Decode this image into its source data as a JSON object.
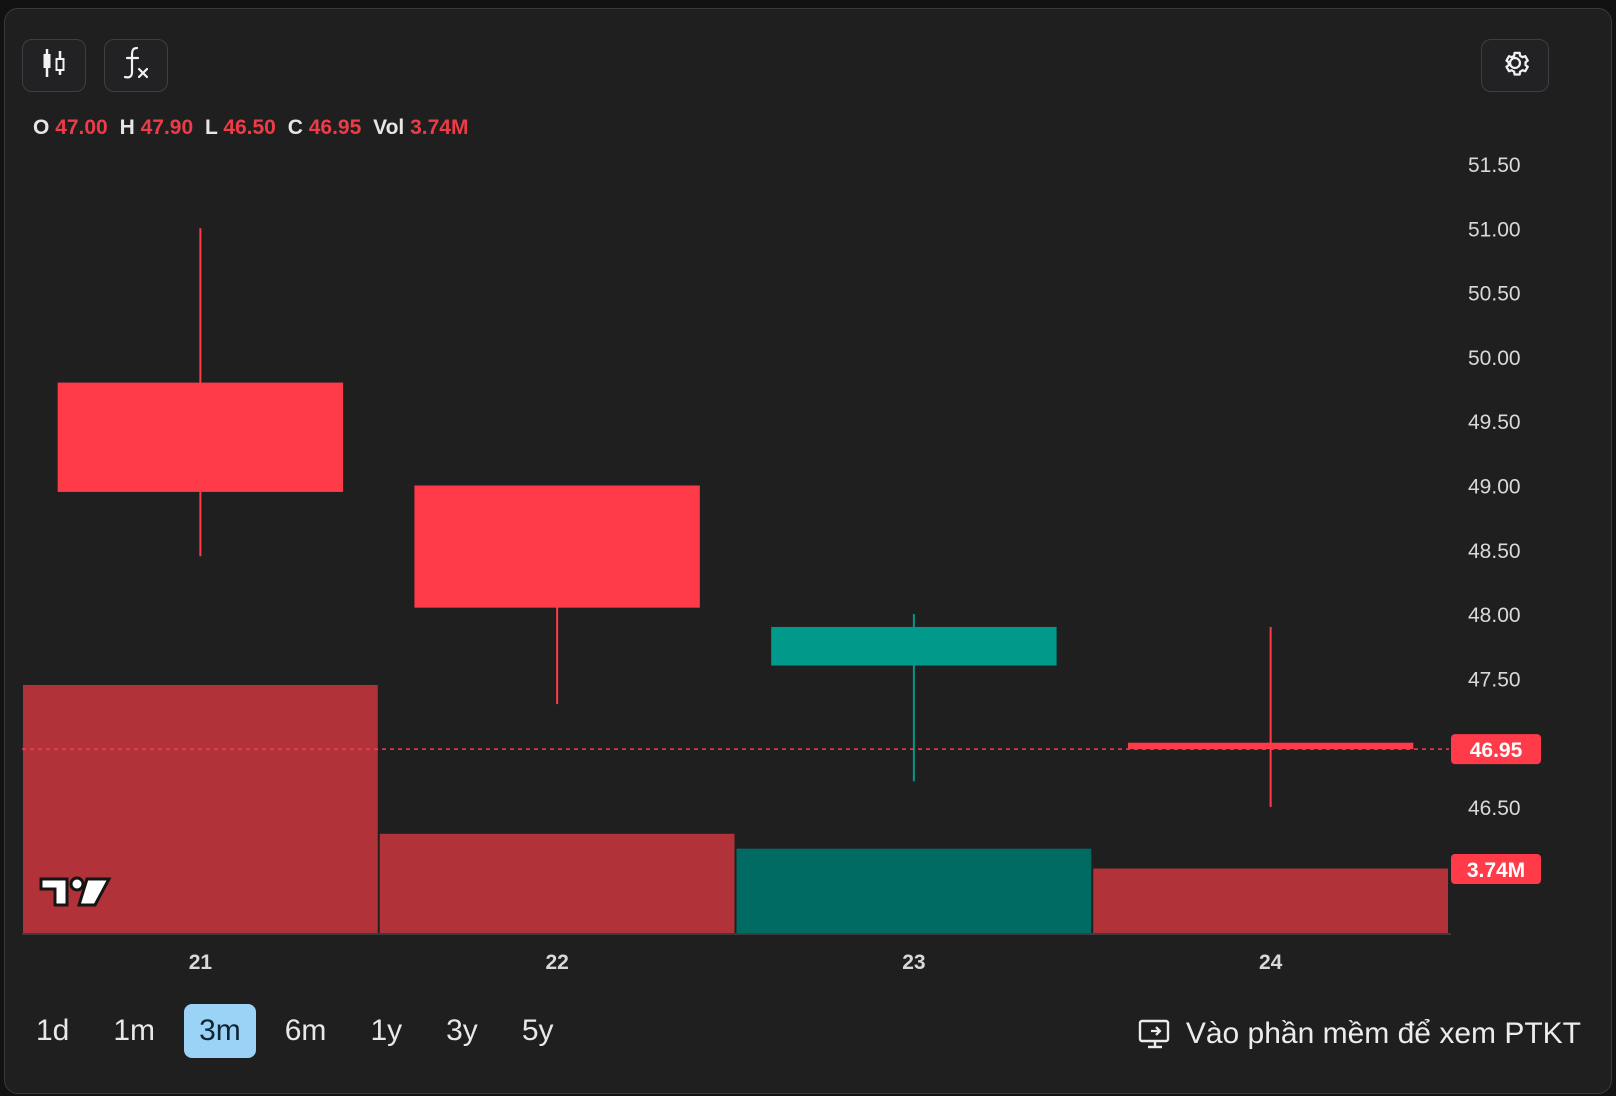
{
  "header": {
    "candle_tool": "candlestick-icon",
    "indicator_tool": "function-icon",
    "settings": "gear-icon"
  },
  "ohlc": {
    "o_label": "O",
    "o": "47.00",
    "h_label": "H",
    "h": "47.90",
    "l_label": "L",
    "l": "46.50",
    "c_label": "C",
    "c": "46.95",
    "vol_label": "Vol",
    "vol": "3.74M"
  },
  "chart_data": {
    "type": "candlestick",
    "categories": [
      "21",
      "22",
      "23",
      "24"
    ],
    "candles": [
      {
        "x": "21",
        "open": 49.8,
        "high": 51.0,
        "low": 48.45,
        "close": 48.95,
        "direction": "down"
      },
      {
        "x": "22",
        "open": 49.0,
        "high": 49.0,
        "low": 47.3,
        "close": 48.05,
        "direction": "down"
      },
      {
        "x": "23",
        "open": 47.6,
        "high": 48.0,
        "low": 46.7,
        "close": 47.9,
        "direction": "up"
      },
      {
        "x": "24",
        "open": 47.0,
        "high": 47.9,
        "low": 46.5,
        "close": 46.95,
        "direction": "down"
      }
    ],
    "volume_relative": [
      1.0,
      0.4,
      0.34,
      0.26
    ],
    "y_ticks": [
      "51.50",
      "51.00",
      "50.50",
      "50.00",
      "49.50",
      "49.00",
      "48.50",
      "48.00",
      "47.50",
      "46.50"
    ],
    "ylim": [
      46.0,
      51.5
    ],
    "last_price_label": "46.95",
    "last_volume_label": "3.74M",
    "colors": {
      "down": "#ff3b4a",
      "up": "#00998a",
      "down_volume": "#b13339",
      "up_volume": "#006b62",
      "axis_text": "#d9d9d9"
    }
  },
  "timeframes": [
    "1d",
    "1m",
    "3m",
    "6m",
    "1y",
    "3y",
    "5y"
  ],
  "active_timeframe": "3m",
  "cta": {
    "label": "Vào phần mềm để xem PTKT",
    "icon": "monitor-icon"
  },
  "watermark": "tradingview-logo"
}
